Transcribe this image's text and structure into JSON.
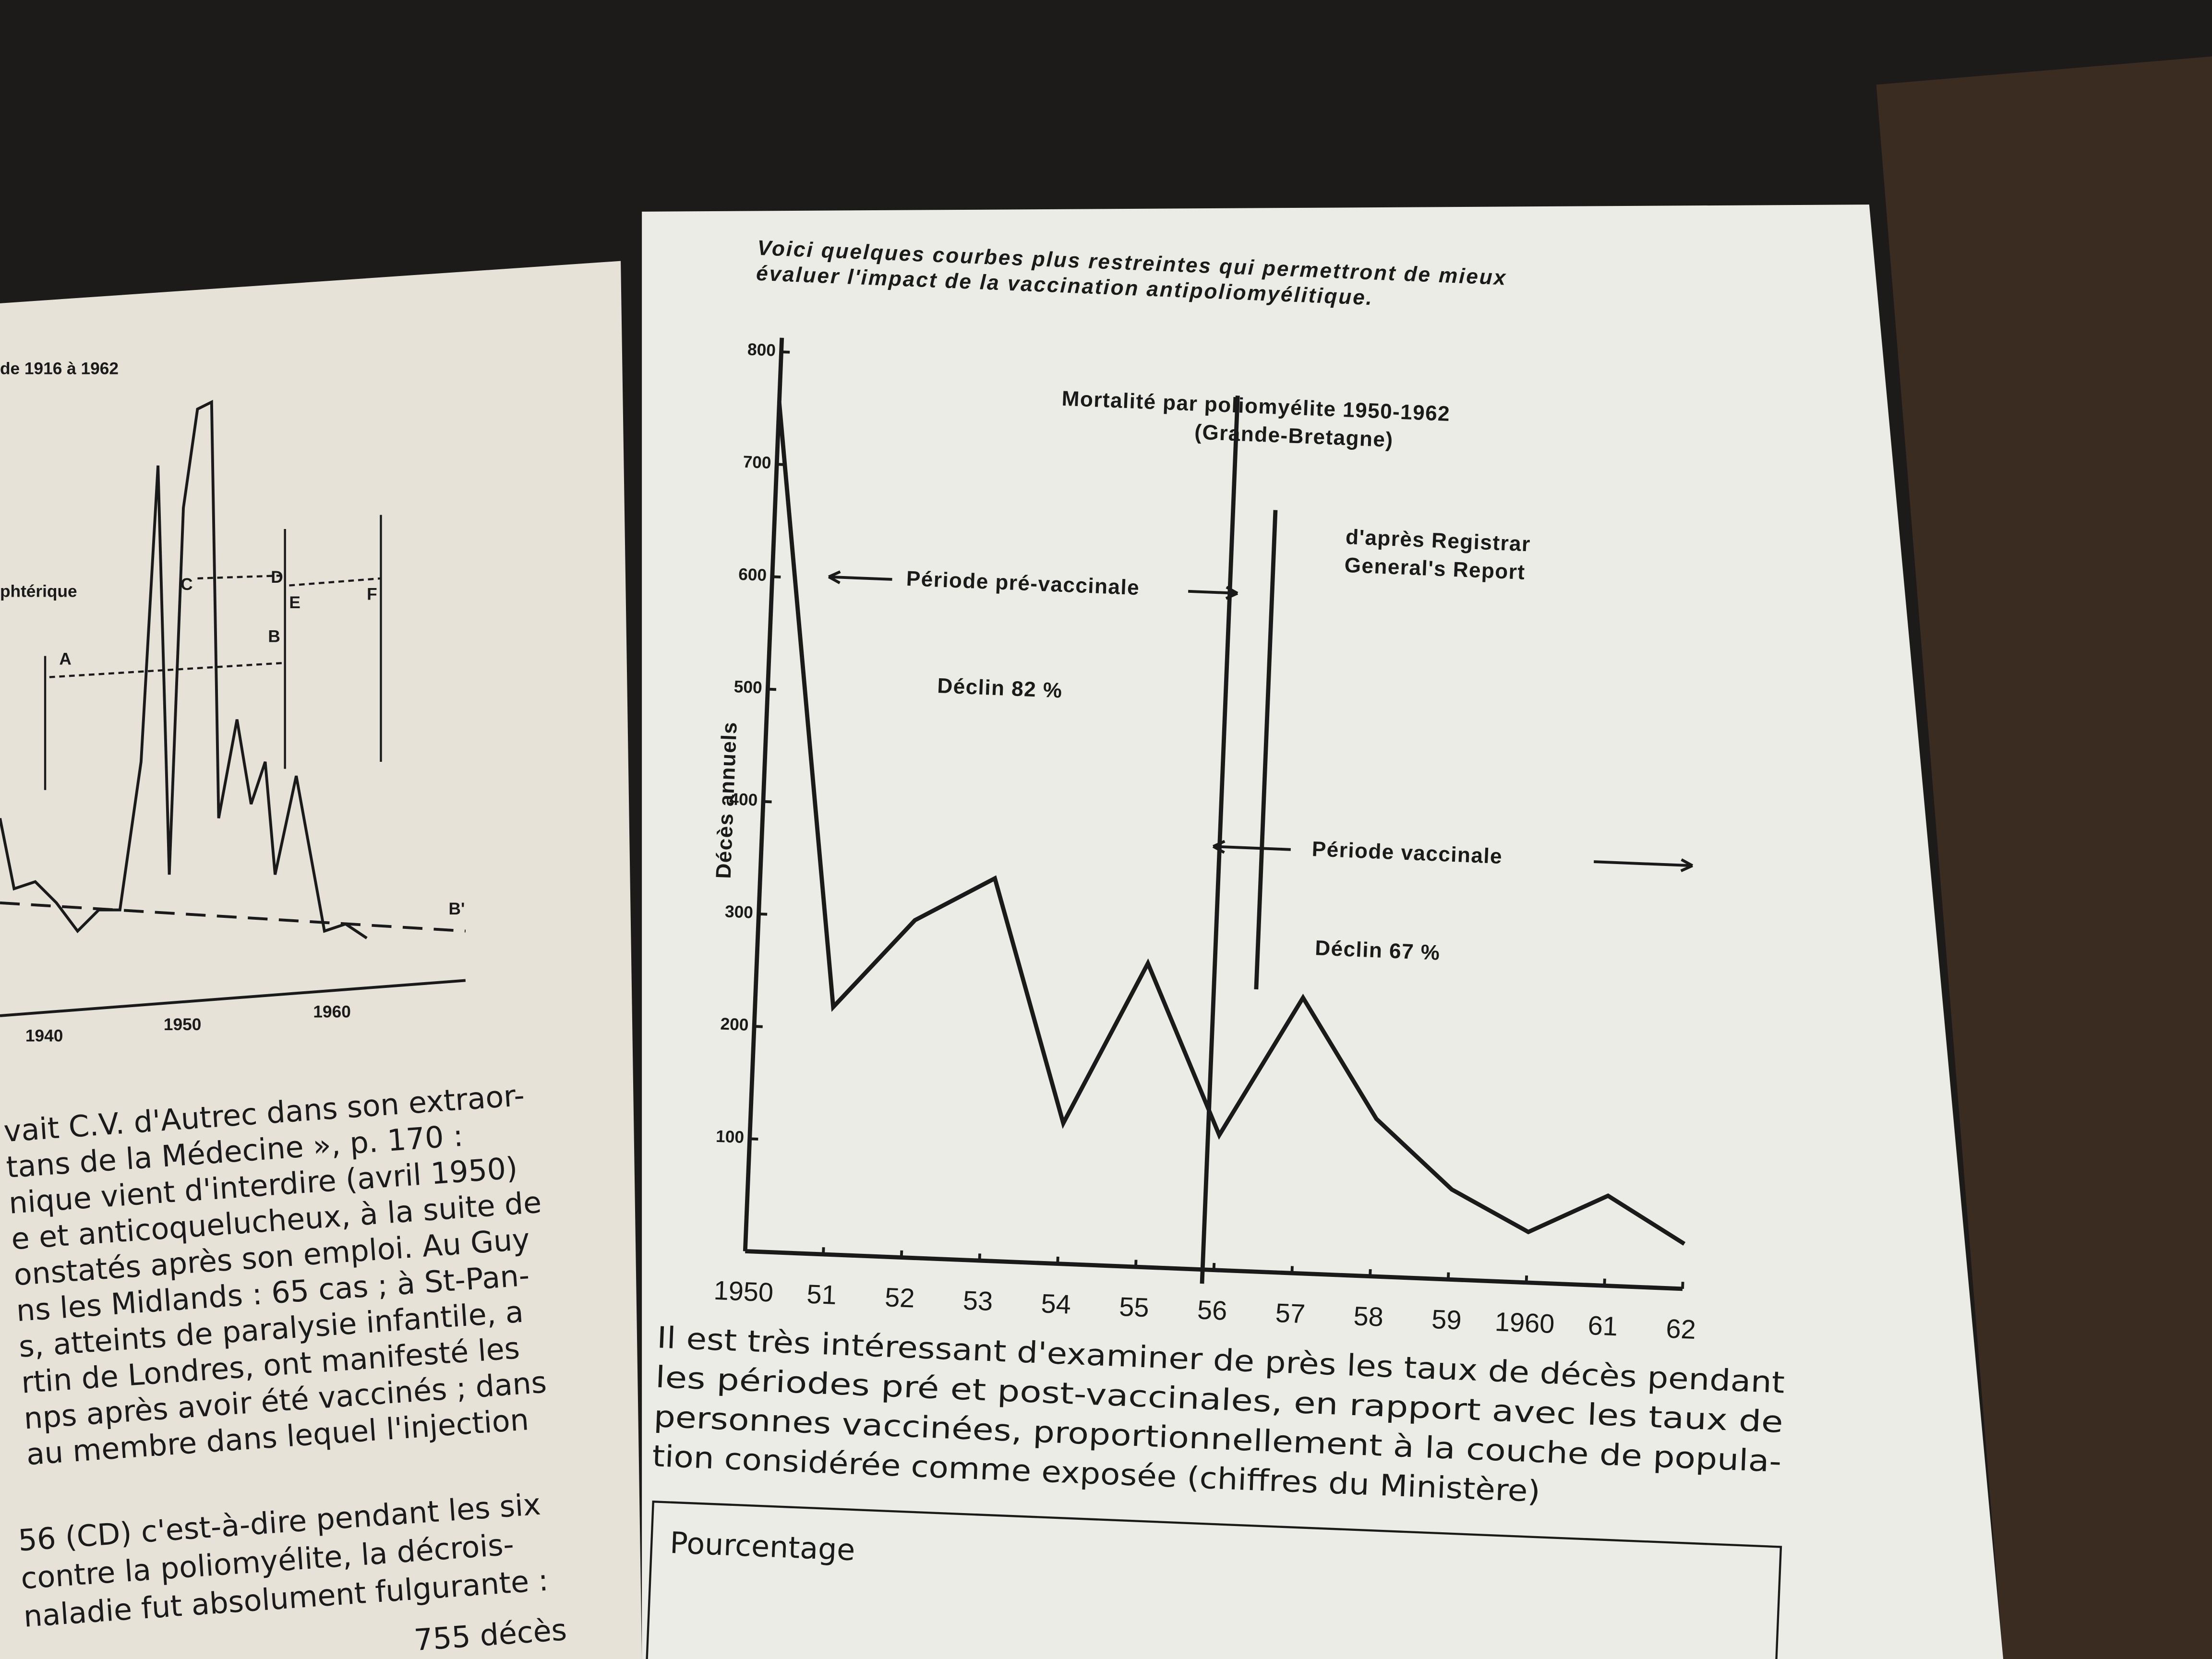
{
  "left_page": {
    "header": "de 1916 à 1962",
    "chart_labels": [
      "phtérique",
      "A",
      "B",
      "C",
      "D",
      "E",
      "F",
      "B'"
    ],
    "x_labels": [
      "1940",
      "1950",
      "1960"
    ],
    "lines": [
      "vait C.V. d'Autrec dans son extraor-",
      "tans de la Médecine », p. 170 :",
      "nique vient d'interdire (avril 1950)",
      "e et anticoquelucheux, à la suite de",
      "onstatés après son emploi. Au Guy",
      "ns les Midlands : 65 cas ; à St-Pan-",
      "s, atteints de paralysie infantile, a",
      "rtin de Londres, ont manifesté les",
      "nps après avoir été vaccinés ; dans",
      "au membre dans lequel l'injection"
    ],
    "lines2": [
      "56 (CD) c'est-à-dire pendant les six",
      "contre la poliomyélite, la décrois-",
      "naladie fut absolument fulgurante :"
    ],
    "last": "755 décès"
  },
  "intro": [
    "Voici quelques courbes plus restreintes qui permettront de mieux",
    "évaluer l'impact de la vaccination antipoliomyélitique."
  ],
  "chart_data": {
    "type": "line",
    "title": "Mortalité par poliomyélite 1950-1962",
    "subtitle": "(Grande-Bretagne)",
    "source": [
      "d'après Registrar",
      "General's Report"
    ],
    "y_label": "Décès annuels",
    "annotations": [
      "Période pré-vaccinale",
      "Déclin 82 %",
      "Période vaccinale",
      "Déclin 67 %"
    ],
    "categories": [
      "1950",
      "51",
      "52",
      "53",
      "54",
      "55",
      "56",
      "57",
      "58",
      "59",
      "1960",
      "61",
      "62"
    ],
    "values": [
      755,
      220,
      300,
      340,
      125,
      270,
      120,
      245,
      140,
      80,
      45,
      80,
      40
    ],
    "color": "#1a1a1a",
    "ylim": [
      0,
      800
    ],
    "yticks": [
      100,
      200,
      300,
      400,
      500,
      600,
      700,
      800
    ]
  },
  "paragraph": [
    "Il est très intéressant d'examiner de près les taux de décès pendant",
    "les périodes pré et post-vaccinales, en rapport avec les taux de",
    "personnes vaccinées, proportionnellement à la couche de popula-",
    "tion considérée comme exposée (chiffres du Ministère)"
  ],
  "table_caption": "Pourcentage"
}
